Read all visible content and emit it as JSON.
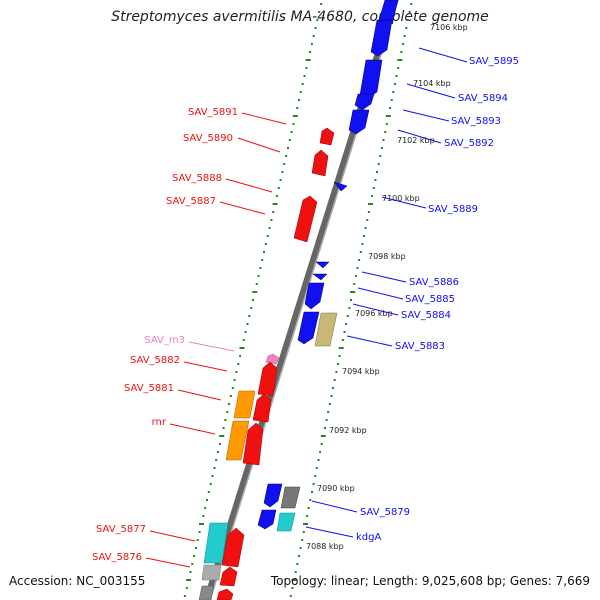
{
  "title": "Streptomyces avermitilis MA-4680, complete genome",
  "footer": {
    "accession": "Accession: NC_003155",
    "topology": "Topology: linear; Length: 9,025,608 bp; Genes: 7,669"
  },
  "colors": {
    "forward_gene": "#f01010",
    "reverse_gene": "#1010f0",
    "rrna": "#ff9900",
    "trna": "#22cccc",
    "pseudogene": "#c8b878",
    "misc": "#999999",
    "ncrna": "#f080c0",
    "scale_dots": "#228822"
  },
  "scale_labels": [
    "7106 kbp",
    "7104 kbp",
    "7102 kbp",
    "7100 kbp",
    "7098 kbp",
    "7096 kbp",
    "7094 kbp",
    "7092 kbp",
    "7090 kbp",
    "7088 kbp"
  ],
  "left_labels": [
    "SAV_5891",
    "SAV_5890",
    "SAV_5888",
    "SAV_5887",
    "SAV_m3",
    "SAV_5882",
    "SAV_5881",
    "rnr",
    "SAV_5877",
    "SAV_5876"
  ],
  "right_labels": [
    "SAV_5895",
    "SAV_5894",
    "SAV_5893",
    "SAV_5892",
    "SAV_5889",
    "SAV_5886",
    "SAV_5885",
    "SAV_5884",
    "SAV_5883",
    "SAV_5879",
    "kdgA"
  ],
  "features": [
    {
      "name": "SAV_5891",
      "strand": "+",
      "type": "gene"
    },
    {
      "name": "SAV_5890",
      "strand": "+",
      "type": "gene"
    },
    {
      "name": "SAV_5888",
      "strand": "+",
      "type": "gene"
    },
    {
      "name": "SAV_5887",
      "strand": "+",
      "type": "gene"
    },
    {
      "name": "SAV_m3",
      "strand": "+",
      "type": "ncRNA"
    },
    {
      "name": "SAV_5882",
      "strand": "+",
      "type": "gene"
    },
    {
      "name": "SAV_5881",
      "strand": "+",
      "type": "gene"
    },
    {
      "name": "rnr",
      "strand": "+",
      "type": "rRNA"
    },
    {
      "name": "SAV_5877",
      "strand": "+",
      "type": "tRNA"
    },
    {
      "name": "SAV_5876",
      "strand": "+",
      "type": "gene"
    },
    {
      "name": "SAV_5895",
      "strand": "-",
      "type": "gene"
    },
    {
      "name": "SAV_5894",
      "strand": "-",
      "type": "gene"
    },
    {
      "name": "SAV_5893",
      "strand": "-",
      "type": "gene"
    },
    {
      "name": "SAV_5892",
      "strand": "-",
      "type": "gene"
    },
    {
      "name": "SAV_5889",
      "strand": "-",
      "type": "gene"
    },
    {
      "name": "SAV_5886",
      "strand": "-",
      "type": "gene"
    },
    {
      "name": "SAV_5885",
      "strand": "-",
      "type": "gene"
    },
    {
      "name": "SAV_5884",
      "strand": "-",
      "type": "gene"
    },
    {
      "name": "SAV_5883",
      "strand": "-",
      "type": "pseudogene"
    },
    {
      "name": "SAV_5879",
      "strand": "-",
      "type": "gene"
    },
    {
      "name": "kdgA",
      "strand": "-",
      "type": "tRNA"
    }
  ]
}
